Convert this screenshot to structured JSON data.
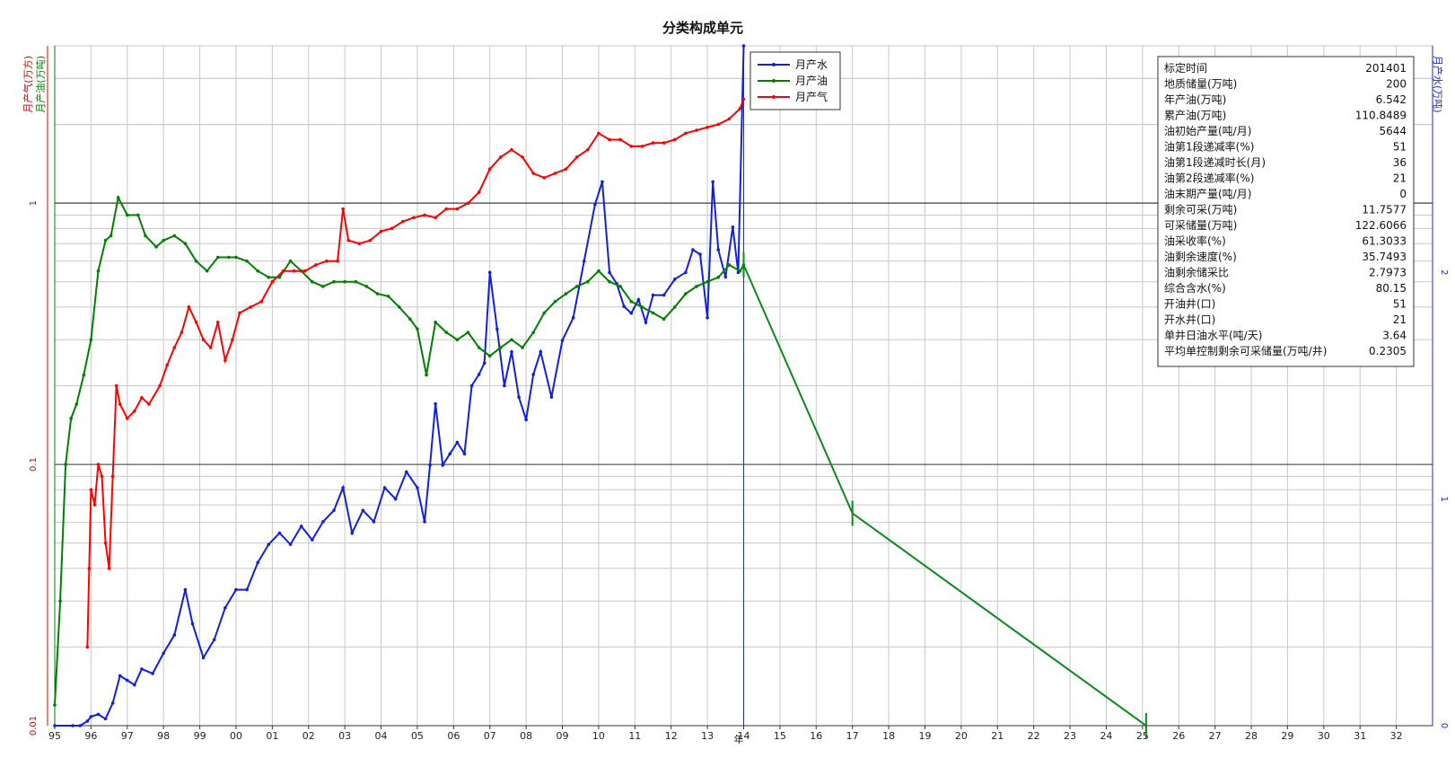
{
  "chart_data": {
    "type": "line",
    "title": "分类构成单元",
    "xlabel": "年",
    "x_tick_labels": [
      "95",
      "96",
      "97",
      "98",
      "99",
      "00",
      "01",
      "02",
      "03",
      "04",
      "05",
      "06",
      "07",
      "08",
      "09",
      "10",
      "11",
      "12",
      "13",
      "14",
      "15",
      "16",
      "17",
      "18",
      "19",
      "20",
      "21",
      "22",
      "23",
      "24",
      "25",
      "26",
      "27",
      "28",
      "29",
      "30",
      "31",
      "32"
    ],
    "y_left_label_gas": "月产气(万方)",
    "y_left_label_oil": "月产油(万吨)",
    "y_right_label": "月产水(万吨)",
    "y_left_scale": "log",
    "y_left_range": [
      0.01,
      4
    ],
    "y_left_tick_labels": [
      "0.01",
      "0.1",
      "1"
    ],
    "y_right_range": [
      0,
      3
    ],
    "y_right_tick_labels": [
      "0",
      "1",
      "2"
    ],
    "grid": true,
    "forecast_start_x": 2014.0,
    "legend": {
      "position": "top-center",
      "entries": [
        "月产水",
        "月产油",
        "月产气"
      ]
    },
    "colors": {
      "water": "#1020e0",
      "oil": "#008000",
      "gas": "#ff0000",
      "forecast": "#0a8a1a",
      "forecast_line": "#2030c0"
    },
    "series": [
      {
        "name": "月产水",
        "axis": "right",
        "x": [
          1995.0,
          1995.5,
          1995.7,
          1995.9,
          1996.0,
          1996.2,
          1996.4,
          1996.6,
          1996.8,
          1997.0,
          1997.2,
          1997.4,
          1997.7,
          1998.0,
          1998.3,
          1998.6,
          1998.8,
          1999.1,
          1999.4,
          1999.7,
          2000.0,
          2000.3,
          2000.6,
          2000.9,
          2001.2,
          2001.5,
          2001.8,
          2002.1,
          2002.4,
          2002.7,
          2002.95,
          2003.2,
          2003.5,
          2003.8,
          2004.1,
          2004.4,
          2004.7,
          2005.0,
          2005.2,
          2005.35,
          2005.5,
          2005.7,
          2005.9,
          2006.1,
          2006.3,
          2006.5,
          2006.7,
          2006.85,
          2007.0,
          2007.2,
          2007.4,
          2007.6,
          2007.8,
          2008.0,
          2008.2,
          2008.4,
          2008.7,
          2009.0,
          2009.3,
          2009.6,
          2009.9,
          2010.1,
          2010.3,
          2010.5,
          2010.7,
          2010.9,
          2011.1,
          2011.3,
          2011.5,
          2011.8,
          2012.1,
          2012.4,
          2012.6,
          2012.8,
          2013.0,
          2013.15,
          2013.3,
          2013.5,
          2013.7,
          2013.85,
          2014.0
        ],
        "y": [
          0.0,
          0.0,
          0.0,
          0.02,
          0.04,
          0.05,
          0.03,
          0.1,
          0.22,
          0.2,
          0.18,
          0.25,
          0.23,
          0.32,
          0.4,
          0.6,
          0.45,
          0.3,
          0.38,
          0.52,
          0.6,
          0.6,
          0.72,
          0.8,
          0.85,
          0.8,
          0.88,
          0.82,
          0.9,
          0.95,
          1.05,
          0.85,
          0.95,
          0.9,
          1.05,
          1.0,
          1.12,
          1.05,
          0.9,
          1.15,
          1.42,
          1.15,
          1.2,
          1.25,
          1.2,
          1.5,
          1.55,
          1.6,
          2.0,
          1.75,
          1.5,
          1.65,
          1.45,
          1.35,
          1.55,
          1.65,
          1.45,
          1.7,
          1.8,
          2.05,
          2.3,
          2.4,
          2.0,
          1.95,
          1.85,
          1.82,
          1.88,
          1.78,
          1.9,
          1.9,
          1.97,
          2.0,
          2.1,
          2.08,
          1.8,
          2.4,
          2.1,
          1.98,
          2.2,
          2.0,
          3.0
        ]
      },
      {
        "name": "月产油",
        "axis": "left",
        "x": [
          1995.0,
          1995.15,
          1995.3,
          1995.45,
          1995.6,
          1995.8,
          1996.0,
          1996.2,
          1996.4,
          1996.55,
          1996.75,
          1997.0,
          1997.3,
          1997.5,
          1997.8,
          1998.0,
          1998.3,
          1998.6,
          1998.9,
          1999.2,
          1999.5,
          1999.8,
          2000.0,
          2000.3,
          2000.6,
          2000.9,
          2001.2,
          2001.5,
          2001.8,
          2002.1,
          2002.4,
          2002.7,
          2003.0,
          2003.3,
          2003.6,
          2003.9,
          2004.2,
          2004.5,
          2004.8,
          2005.0,
          2005.25,
          2005.5,
          2005.8,
          2006.1,
          2006.4,
          2006.7,
          2007.0,
          2007.3,
          2007.6,
          2007.9,
          2008.2,
          2008.5,
          2008.8,
          2009.1,
          2009.4,
          2009.7,
          2010.0,
          2010.3,
          2010.6,
          2010.9,
          2011.2,
          2011.5,
          2011.8,
          2012.1,
          2012.4,
          2012.7,
          2013.0,
          2013.3,
          2013.6,
          2013.9,
          2014.0
        ],
        "y": [
          0.012,
          0.03,
          0.1,
          0.15,
          0.17,
          0.22,
          0.3,
          0.55,
          0.72,
          0.75,
          1.05,
          0.9,
          0.9,
          0.75,
          0.68,
          0.72,
          0.75,
          0.7,
          0.6,
          0.55,
          0.62,
          0.62,
          0.62,
          0.6,
          0.55,
          0.52,
          0.52,
          0.6,
          0.55,
          0.5,
          0.48,
          0.5,
          0.5,
          0.5,
          0.48,
          0.45,
          0.44,
          0.4,
          0.36,
          0.33,
          0.22,
          0.35,
          0.32,
          0.3,
          0.32,
          0.28,
          0.26,
          0.28,
          0.3,
          0.28,
          0.32,
          0.38,
          0.42,
          0.45,
          0.48,
          0.5,
          0.55,
          0.5,
          0.48,
          0.42,
          0.4,
          0.38,
          0.36,
          0.4,
          0.45,
          0.48,
          0.5,
          0.52,
          0.58,
          0.55,
          0.58
        ]
      },
      {
        "name": "月产气",
        "axis": "left",
        "x": [
          1995.9,
          1995.95,
          1996.0,
          1996.1,
          1996.2,
          1996.3,
          1996.4,
          1996.5,
          1996.6,
          1996.7,
          1996.8,
          1997.0,
          1997.2,
          1997.4,
          1997.6,
          1997.9,
          1998.1,
          1998.3,
          1998.5,
          1998.7,
          1998.9,
          1999.1,
          1999.3,
          1999.5,
          1999.7,
          1999.9,
          2000.1,
          2000.4,
          2000.7,
          2001.0,
          2001.3,
          2001.6,
          2001.9,
          2002.2,
          2002.5,
          2002.8,
          2002.95,
          2003.1,
          2003.4,
          2003.7,
          2004.0,
          2004.3,
          2004.6,
          2004.9,
          2005.2,
          2005.5,
          2005.8,
          2006.1,
          2006.4,
          2006.7,
          2007.0,
          2007.3,
          2007.6,
          2007.9,
          2008.2,
          2008.5,
          2008.8,
          2009.1,
          2009.4,
          2009.7,
          2010.0,
          2010.3,
          2010.6,
          2010.9,
          2011.2,
          2011.5,
          2011.8,
          2012.1,
          2012.4,
          2012.7,
          2013.0,
          2013.3,
          2013.6,
          2013.9,
          2014.0
        ],
        "y": [
          0.02,
          0.04,
          0.08,
          0.07,
          0.1,
          0.09,
          0.05,
          0.04,
          0.09,
          0.2,
          0.17,
          0.15,
          0.16,
          0.18,
          0.17,
          0.2,
          0.24,
          0.28,
          0.32,
          0.4,
          0.35,
          0.3,
          0.28,
          0.35,
          0.25,
          0.3,
          0.38,
          0.4,
          0.42,
          0.5,
          0.55,
          0.55,
          0.55,
          0.58,
          0.6,
          0.6,
          0.95,
          0.72,
          0.7,
          0.72,
          0.78,
          0.8,
          0.85,
          0.88,
          0.9,
          0.88,
          0.95,
          0.95,
          1.0,
          1.1,
          1.35,
          1.5,
          1.6,
          1.5,
          1.3,
          1.25,
          1.3,
          1.35,
          1.5,
          1.6,
          1.85,
          1.75,
          1.75,
          1.65,
          1.65,
          1.7,
          1.7,
          1.75,
          1.85,
          1.9,
          1.95,
          2.0,
          2.1,
          2.3,
          2.5
        ]
      },
      {
        "name": "",
        "axis": "left",
        "kind": "forecast",
        "x": [
          2014.0,
          2017.0,
          2025.1
        ],
        "y": [
          0.58,
          0.065,
          0.01
        ]
      }
    ],
    "info_table": [
      {
        "label": "标定时间",
        "value": "201401"
      },
      {
        "label": "地质储量(万吨)",
        "value": "200"
      },
      {
        "label": "年产油(万吨)",
        "value": "6.542"
      },
      {
        "label": "累产油(万吨)",
        "value": "110.8489"
      },
      {
        "label": "油初始产量(吨/月)",
        "value": "5644"
      },
      {
        "label": "油第1段递减率(%)",
        "value": "51"
      },
      {
        "label": "油第1段递减时长(月)",
        "value": "36"
      },
      {
        "label": "油第2段递减率(%)",
        "value": "21"
      },
      {
        "label": "油末期产量(吨/月)",
        "value": "0"
      },
      {
        "label": "剩余可采(万吨)",
        "value": "11.7577"
      },
      {
        "label": "可采储量(万吨)",
        "value": "122.6066"
      },
      {
        "label": "油采收率(%)",
        "value": "61.3033"
      },
      {
        "label": "油剩余速度(%)",
        "value": "35.7493"
      },
      {
        "label": "油剩余储采比",
        "value": "2.7973"
      },
      {
        "label": "综合含水(%)",
        "value": "80.15"
      },
      {
        "label": "开油井(口)",
        "value": "51"
      },
      {
        "label": "开水井(口)",
        "value": "21"
      },
      {
        "label": "单井日油水平(吨/天)",
        "value": "3.64"
      },
      {
        "label": "平均单控制剩余可采储量(万吨/井)",
        "value": "0.2305"
      }
    ]
  }
}
